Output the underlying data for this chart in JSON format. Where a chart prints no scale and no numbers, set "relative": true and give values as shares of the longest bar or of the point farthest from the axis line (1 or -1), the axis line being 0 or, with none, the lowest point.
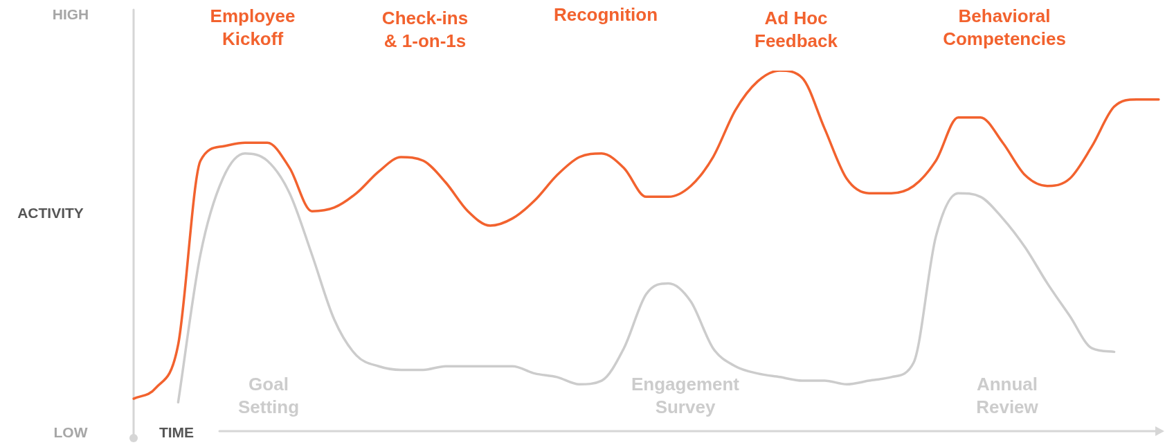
{
  "chart_data": {
    "type": "line",
    "relative": true,
    "marker": "none",
    "legend": false,
    "xlabel": "TIME",
    "ylabel": "ACTIVITY",
    "categories": [
      null,
      null,
      null,
      null,
      null,
      null,
      null,
      null,
      null,
      null,
      null,
      null,
      null,
      null,
      null,
      null,
      null,
      null,
      null,
      null,
      null,
      null,
      null,
      null,
      null,
      null,
      null,
      null,
      null,
      null,
      null,
      null,
      null,
      null,
      null,
      null,
      null,
      null,
      null,
      null,
      null,
      null,
      null,
      null,
      null,
      null,
      null
    ],
    "series": [
      {
        "color": "#f2622e",
        "values": [
          0.09,
          0.12,
          0.24,
          0.75,
          0.79,
          0.8,
          0.8,
          0.73,
          0.61,
          0.62,
          0.66,
          0.72,
          0.76,
          0.75,
          0.69,
          0.61,
          0.57,
          0.59,
          0.64,
          0.71,
          0.76,
          0.77,
          0.73,
          0.65,
          0.65,
          0.68,
          0.76,
          0.89,
          0.97,
          1.0,
          0.98,
          0.84,
          0.7,
          0.66,
          0.66,
          0.68,
          0.75,
          0.87,
          0.87,
          0.8,
          0.71,
          0.68,
          0.7,
          0.79,
          0.9,
          0.92,
          0.92
        ]
      },
      {
        "color": "#cccccc",
        "values": [
          null,
          null,
          0.08,
          0.49,
          0.7,
          0.77,
          0.75,
          0.66,
          0.49,
          0.31,
          0.21,
          0.18,
          0.17,
          0.17,
          0.18,
          0.18,
          0.18,
          0.18,
          0.16,
          0.15,
          0.13,
          0.14,
          0.23,
          0.38,
          0.41,
          0.36,
          0.23,
          0.18,
          0.16,
          0.15,
          0.14,
          0.14,
          0.13,
          0.14,
          0.15,
          0.19,
          0.54,
          0.66,
          0.65,
          0.59,
          0.51,
          0.41,
          0.32,
          0.23,
          0.22,
          null,
          null
        ]
      }
    ],
    "annotations": [
      "Employee Kickoff",
      "Check-ins & 1-on-1s",
      "Recognition",
      "Ad Hoc Feedback",
      "Behavioral Competencies",
      "Goal Setting",
      "Engagement Survey",
      "Annual Review",
      "HIGH",
      "LOW"
    ]
  }
}
